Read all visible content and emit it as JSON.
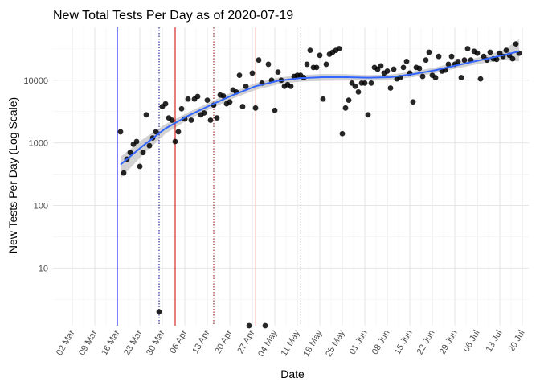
{
  "chart_data": {
    "type": "scatter",
    "title": "New Total Tests Per Day as of 2020-07-19",
    "xlabel": "Date",
    "ylabel": "New Tests Per Day (Log Scale)",
    "y_scale": "log10",
    "xlim": [
      "2020-02-25",
      "2020-07-22"
    ],
    "ylim": [
      1.2,
      70000
    ],
    "x_ticks": [
      "2020-03-02",
      "2020-03-09",
      "2020-03-16",
      "2020-03-23",
      "2020-03-30",
      "2020-04-06",
      "2020-04-13",
      "2020-04-20",
      "2020-04-27",
      "2020-05-04",
      "2020-05-11",
      "2020-05-18",
      "2020-05-25",
      "2020-06-01",
      "2020-06-08",
      "2020-06-15",
      "2020-06-22",
      "2020-06-29",
      "2020-07-06",
      "2020-07-13",
      "2020-07-20"
    ],
    "x_tick_labels": [
      "02 Mar",
      "09 Mar",
      "16 Mar",
      "23 Mar",
      "30 Mar",
      "06 Apr",
      "13 Apr",
      "20 Apr",
      "27 Apr",
      "04 May",
      "11 May",
      "18 May",
      "25 May",
      "01 Jun",
      "08 Jun",
      "15 Jun",
      "22 Jun",
      "29 Jun",
      "06 Jul",
      "13 Jul",
      "20 Jul"
    ],
    "y_ticks": [
      10,
      100,
      1000,
      10000
    ],
    "y_tick_labels": [
      "10",
      "100",
      "1000",
      "10000"
    ],
    "grid": true,
    "legend": "none",
    "point_color": "#000000",
    "smooth_color": "#3366ff",
    "ribbon_color": "#bfbfbf",
    "vlines": [
      {
        "x": "2020-03-16",
        "color": "#0000ff",
        "style": "solid"
      },
      {
        "x": "2020-03-29",
        "color": "#000080",
        "style": "dotted"
      },
      {
        "x": "2020-04-03",
        "color": "#cc0000",
        "style": "solid"
      },
      {
        "x": "2020-04-15",
        "color": "#8b0000",
        "style": "dotted"
      },
      {
        "x": "2020-04-28",
        "color": "#ffb0b0",
        "style": "solid"
      },
      {
        "x": "2020-05-12",
        "color": "#c8c8c8",
        "style": "dotted"
      }
    ],
    "points": [
      [
        "2020-03-17",
        1500
      ],
      [
        "2020-03-18",
        330
      ],
      [
        "2020-03-19",
        550
      ],
      [
        "2020-03-20",
        700
      ],
      [
        "2020-03-21",
        950
      ],
      [
        "2020-03-22",
        1050
      ],
      [
        "2020-03-23",
        420
      ],
      [
        "2020-03-24",
        700
      ],
      [
        "2020-03-25",
        2800
      ],
      [
        "2020-03-26",
        900
      ],
      [
        "2020-03-27",
        1200
      ],
      [
        "2020-03-28",
        1500
      ],
      [
        "2020-03-29",
        2
      ],
      [
        "2020-03-30",
        3800
      ],
      [
        "2020-03-31",
        4200
      ],
      [
        "2020-04-01",
        2500
      ],
      [
        "2020-04-02",
        2300
      ],
      [
        "2020-04-03",
        1050
      ],
      [
        "2020-04-04",
        1500
      ],
      [
        "2020-04-05",
        3500
      ],
      [
        "2020-04-06",
        2400
      ],
      [
        "2020-04-07",
        5000
      ],
      [
        "2020-04-08",
        2300
      ],
      [
        "2020-04-09",
        5000
      ],
      [
        "2020-04-10",
        5500
      ],
      [
        "2020-04-11",
        2800
      ],
      [
        "2020-04-12",
        3000
      ],
      [
        "2020-04-13",
        4800
      ],
      [
        "2020-04-14",
        2300
      ],
      [
        "2020-04-15",
        4000
      ],
      [
        "2020-04-16",
        2500
      ],
      [
        "2020-04-17",
        5800
      ],
      [
        "2020-04-18",
        5600
      ],
      [
        "2020-04-19",
        4200
      ],
      [
        "2020-04-20",
        4500
      ],
      [
        "2020-04-21",
        7000
      ],
      [
        "2020-04-22",
        6500
      ],
      [
        "2020-04-23",
        12000
      ],
      [
        "2020-04-24",
        3800
      ],
      [
        "2020-04-25",
        8000
      ],
      [
        "2020-04-26",
        1.1
      ],
      [
        "2020-04-27",
        13000
      ],
      [
        "2020-04-28",
        3600
      ],
      [
        "2020-04-29",
        21000
      ],
      [
        "2020-04-30",
        9000
      ],
      [
        "2020-05-01",
        1.1
      ],
      [
        "2020-05-02",
        18000
      ],
      [
        "2020-05-03",
        10000
      ],
      [
        "2020-05-04",
        3300
      ],
      [
        "2020-05-05",
        13500
      ],
      [
        "2020-05-06",
        10000
      ],
      [
        "2020-05-07",
        8000
      ],
      [
        "2020-05-08",
        8500
      ],
      [
        "2020-05-09",
        8000
      ],
      [
        "2020-05-10",
        11500
      ],
      [
        "2020-05-11",
        12000
      ],
      [
        "2020-05-12",
        12000
      ],
      [
        "2020-05-13",
        11000
      ],
      [
        "2020-05-14",
        18000
      ],
      [
        "2020-05-15",
        30000
      ],
      [
        "2020-05-16",
        16000
      ],
      [
        "2020-05-17",
        16000
      ],
      [
        "2020-05-18",
        25000
      ],
      [
        "2020-05-19",
        5000
      ],
      [
        "2020-05-20",
        18000
      ],
      [
        "2020-05-21",
        26000
      ],
      [
        "2020-05-22",
        28000
      ],
      [
        "2020-05-23",
        30000
      ],
      [
        "2020-05-24",
        32000
      ],
      [
        "2020-05-25",
        1400
      ],
      [
        "2020-05-26",
        3600
      ],
      [
        "2020-05-27",
        4800
      ],
      [
        "2020-05-28",
        9000
      ],
      [
        "2020-05-29",
        8000
      ],
      [
        "2020-05-30",
        6500
      ],
      [
        "2020-05-31",
        9000
      ],
      [
        "2020-06-01",
        9000
      ],
      [
        "2020-06-02",
        2800
      ],
      [
        "2020-06-03",
        9000
      ],
      [
        "2020-06-04",
        16000
      ],
      [
        "2020-06-05",
        15000
      ],
      [
        "2020-06-06",
        17000
      ],
      [
        "2020-06-07",
        13000
      ],
      [
        "2020-06-08",
        14000
      ],
      [
        "2020-06-09",
        7500
      ],
      [
        "2020-06-10",
        15000
      ],
      [
        "2020-06-11",
        10500
      ],
      [
        "2020-06-12",
        11000
      ],
      [
        "2020-06-13",
        16000
      ],
      [
        "2020-06-14",
        20000
      ],
      [
        "2020-06-15",
        13000
      ],
      [
        "2020-06-16",
        4500
      ],
      [
        "2020-06-17",
        16000
      ],
      [
        "2020-06-18",
        15500
      ],
      [
        "2020-06-19",
        11500
      ],
      [
        "2020-06-20",
        21000
      ],
      [
        "2020-06-21",
        28000
      ],
      [
        "2020-06-22",
        12000
      ],
      [
        "2020-06-23",
        11000
      ],
      [
        "2020-06-24",
        24000
      ],
      [
        "2020-06-25",
        14000
      ],
      [
        "2020-06-26",
        14500
      ],
      [
        "2020-06-27",
        18000
      ],
      [
        "2020-06-28",
        24000
      ],
      [
        "2020-06-29",
        18000
      ],
      [
        "2020-06-30",
        20000
      ],
      [
        "2020-07-01",
        11000
      ],
      [
        "2020-07-02",
        21000
      ],
      [
        "2020-07-03",
        32000
      ],
      [
        "2020-07-04",
        21000
      ],
      [
        "2020-07-05",
        29000
      ],
      [
        "2020-07-06",
        27000
      ],
      [
        "2020-07-07",
        10500
      ],
      [
        "2020-07-08",
        24000
      ],
      [
        "2020-07-09",
        21000
      ],
      [
        "2020-07-10",
        28000
      ],
      [
        "2020-07-11",
        22000
      ],
      [
        "2020-07-12",
        21500
      ],
      [
        "2020-07-13",
        27000
      ],
      [
        "2020-07-14",
        24000
      ],
      [
        "2020-07-15",
        30000
      ],
      [
        "2020-07-16",
        25000
      ],
      [
        "2020-07-17",
        22000
      ],
      [
        "2020-07-18",
        38000
      ],
      [
        "2020-07-19",
        27000
      ]
    ],
    "smooth": [
      [
        "2020-03-17",
        450,
        270,
        600
      ],
      [
        "2020-03-24",
        900,
        650,
        1150
      ],
      [
        "2020-03-31",
        1700,
        1400,
        2000
      ],
      [
        "2020-04-07",
        2700,
        2350,
        3050
      ],
      [
        "2020-04-14",
        4000,
        3500,
        4500
      ],
      [
        "2020-04-21",
        5800,
        5100,
        6500
      ],
      [
        "2020-04-28",
        8000,
        7000,
        9000
      ],
      [
        "2020-05-05",
        9800,
        8600,
        11000
      ],
      [
        "2020-05-12",
        10800,
        9500,
        12100
      ],
      [
        "2020-05-19",
        11200,
        9800,
        12600
      ],
      [
        "2020-05-26",
        11200,
        9900,
        12500
      ],
      [
        "2020-06-02",
        11000,
        9900,
        12100
      ],
      [
        "2020-06-09",
        11200,
        10100,
        12300
      ],
      [
        "2020-06-16",
        12500,
        11200,
        13800
      ],
      [
        "2020-06-23",
        14500,
        13000,
        16000
      ],
      [
        "2020-06-30",
        17500,
        15600,
        19500
      ],
      [
        "2020-07-07",
        21000,
        18500,
        23500
      ],
      [
        "2020-07-14",
        25000,
        21000,
        30000
      ],
      [
        "2020-07-19",
        29000,
        20000,
        45000
      ]
    ]
  }
}
